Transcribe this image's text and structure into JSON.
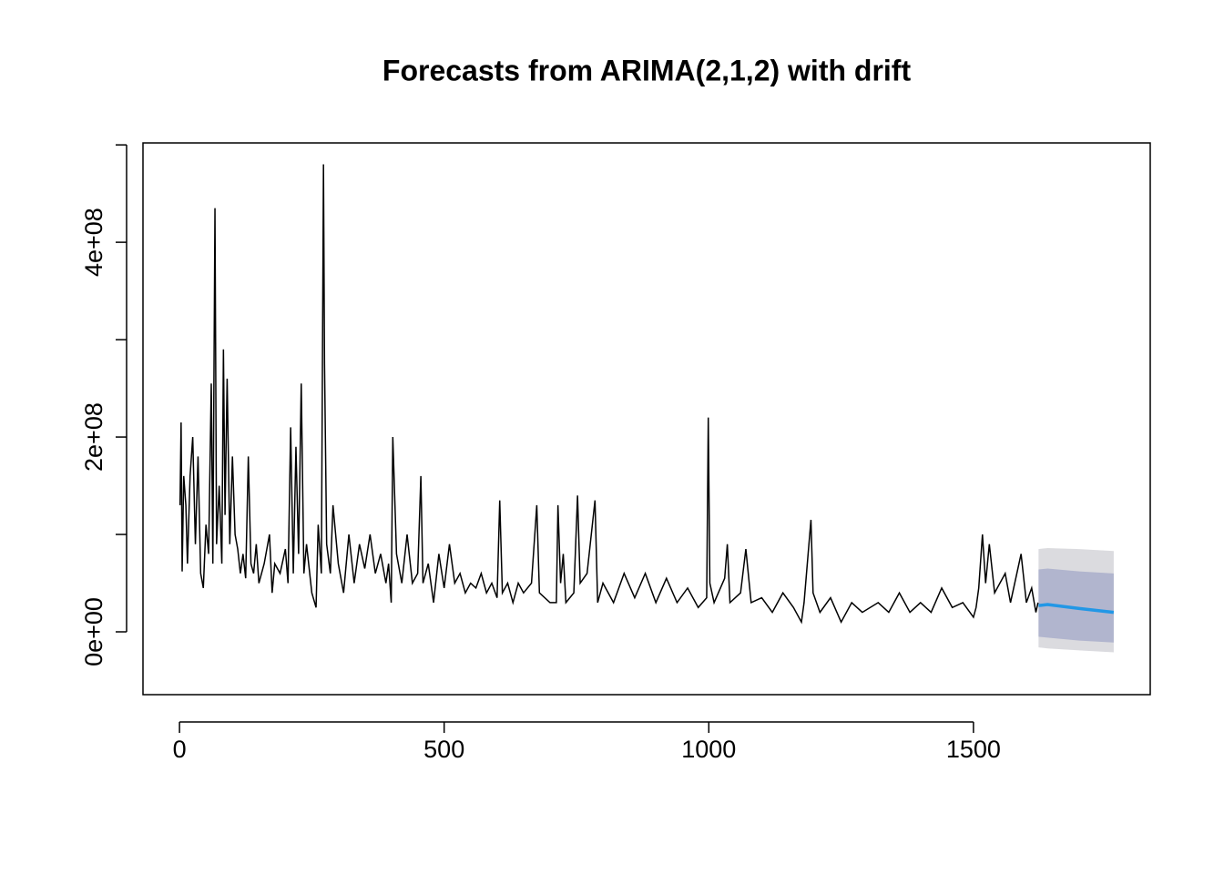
{
  "chart_data": {
    "type": "forecast",
    "title": "Forecasts from ARIMA(2,1,2) with drift",
    "x": [
      1,
      3,
      5,
      8,
      12,
      15,
      20,
      25,
      30,
      35,
      40,
      45,
      50,
      55,
      60,
      63,
      67,
      70,
      75,
      80,
      83,
      86,
      90,
      95,
      100,
      105,
      110,
      115,
      120,
      125,
      130,
      135,
      140,
      145,
      150,
      160,
      170,
      175,
      180,
      190,
      200,
      205,
      210,
      215,
      220,
      225,
      230,
      235,
      240,
      250,
      258,
      262,
      268,
      272,
      274,
      278,
      285,
      290,
      300,
      310,
      320,
      330,
      340,
      350,
      360,
      370,
      380,
      390,
      395,
      400,
      403,
      410,
      420,
      430,
      440,
      450,
      456,
      460,
      470,
      480,
      490,
      500,
      510,
      520,
      530,
      540,
      550,
      560,
      570,
      580,
      590,
      600,
      605,
      610,
      620,
      630,
      640,
      650,
      665,
      675,
      680,
      700,
      712,
      715,
      720,
      725,
      730,
      745,
      752,
      757,
      770,
      785,
      790,
      800,
      820,
      840,
      860,
      880,
      900,
      920,
      940,
      960,
      980,
      996,
      999,
      1002,
      1010,
      1030,
      1035,
      1040,
      1060,
      1070,
      1080,
      1100,
      1120,
      1140,
      1160,
      1175,
      1180,
      1193,
      1197,
      1210,
      1230,
      1250,
      1270,
      1290,
      1320,
      1340,
      1360,
      1380,
      1400,
      1420,
      1440,
      1460,
      1480,
      1500,
      1505,
      1510,
      1517,
      1523,
      1530,
      1540,
      1560,
      1570,
      1580,
      1590,
      1600,
      1610,
      1618,
      1622
    ],
    "values": [
      130000000.0,
      215000000.0,
      62000000.0,
      160000000.0,
      130000000.0,
      70000000.0,
      160000000.0,
      200000000.0,
      90000000.0,
      180000000.0,
      60000000.0,
      45000000.0,
      110000000.0,
      80000000.0,
      255000000.0,
      70000000.0,
      435000000.0,
      90000000.0,
      150000000.0,
      70000000.0,
      290000000.0,
      120000000.0,
      260000000.0,
      90000000.0,
      180000000.0,
      100000000.0,
      85000000.0,
      60000000.0,
      80000000.0,
      55000000.0,
      180000000.0,
      70000000.0,
      60000000.0,
      90000000.0,
      50000000.0,
      70000000.0,
      100000000.0,
      40000000.0,
      70000000.0,
      60000000.0,
      85000000.0,
      50000000.0,
      210000000.0,
      60000000.0,
      190000000.0,
      80000000.0,
      255000000.0,
      60000000.0,
      90000000.0,
      40000000.0,
      25000000.0,
      110000000.0,
      60000000.0,
      480000000.0,
      275000000.0,
      90000000.0,
      60000000.0,
      130000000.0,
      70000000.0,
      40000000.0,
      100000000.0,
      50000000.0,
      90000000.0,
      65000000.0,
      100000000.0,
      60000000.0,
      80000000.0,
      50000000.0,
      70000000.0,
      30000000.0,
      200000000.0,
      80000000.0,
      50000000.0,
      100000000.0,
      50000000.0,
      60000000.0,
      160000000.0,
      50000000.0,
      70000000.0,
      30000000.0,
      80000000.0,
      45000000.0,
      90000000.0,
      50000000.0,
      60000000.0,
      40000000.0,
      50000000.0,
      45000000.0,
      60000000.0,
      40000000.0,
      50000000.0,
      35000000.0,
      135000000.0,
      40000000.0,
      50000000.0,
      30000000.0,
      50000000.0,
      40000000.0,
      50000000.0,
      130000000.0,
      40000000.0,
      30000000.0,
      30000000.0,
      130000000.0,
      50000000.0,
      80000000.0,
      30000000.0,
      40000000.0,
      140000000.0,
      50000000.0,
      60000000.0,
      135000000.0,
      30000000.0,
      50000000.0,
      30000000.0,
      60000000.0,
      35000000.0,
      60000000.0,
      30000000.0,
      55000000.0,
      30000000.0,
      45000000.0,
      25000000.0,
      35000000.0,
      220000000.0,
      50000000.0,
      30000000.0,
      55000000.0,
      90000000.0,
      30000000.0,
      40000000.0,
      85000000.0,
      30000000.0,
      35000000.0,
      20000000.0,
      40000000.0,
      25000000.0,
      10000000.0,
      30000000.0,
      115000000.0,
      40000000.0,
      20000000.0,
      35000000.0,
      10000000.0,
      30000000.0,
      20000000.0,
      30000000.0,
      20000000.0,
      40000000.0,
      20000000.0,
      30000000.0,
      20000000.0,
      45000000.0,
      25000000.0,
      30000000.0,
      15000000.0,
      25000000.0,
      45000000.0,
      100000000.0,
      50000000.0,
      90000000.0,
      40000000.0,
      60000000.0,
      30000000.0,
      55000000.0,
      80000000.0,
      30000000.0,
      45000000.0,
      20000000.0,
      30000000.0
    ],
    "color": "#000000",
    "forecast": {
      "x": [
        1623,
        1640,
        1700,
        1765
      ],
      "mean": [
        27000000.0,
        28000000.0,
        24000000.0,
        20000000.0
      ],
      "lo80": [
        -5000000.0,
        -6000000.0,
        -9000000.0,
        -11000000.0
      ],
      "hi80": [
        64000000.0,
        65000000.0,
        62000000.0,
        60000000.0
      ],
      "lo95": [
        -16000000.0,
        -17000000.0,
        -19000000.0,
        -21000000.0
      ],
      "hi95": [
        85000000.0,
        86000000.0,
        85000000.0,
        83000000.0
      ],
      "color": "#2297e6",
      "band80_color": "#b1b5ce",
      "band95_color": "#dbdbdf"
    },
    "xlim": [
      -69,
      1834
    ],
    "ylim": [
      -64500000,
      502000000
    ],
    "xticks": [
      0,
      500,
      1000,
      1500
    ],
    "yticks": [
      {
        "value": 0,
        "label": "0e+00"
      },
      {
        "value": 200000000,
        "label": "2e+08"
      },
      {
        "value": 400000000,
        "label": "4e+08"
      }
    ],
    "yticks_unlabeled": [
      100000000,
      300000000,
      500000000
    ]
  }
}
